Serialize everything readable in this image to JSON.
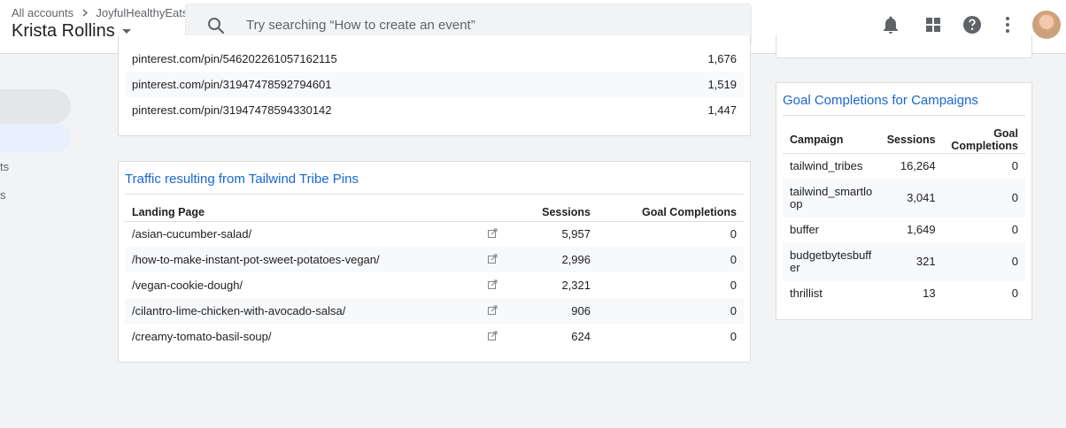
{
  "header": {
    "breadcrumb_root": "All accounts",
    "breadcrumb_sep": ">",
    "breadcrumb_property": "JoyfulHealthyEats",
    "account_name": "Krista Rollins",
    "search_placeholder": "Try searching “How to create an event”"
  },
  "sidebar": {
    "item_text_1": "ts",
    "item_text_2": "s"
  },
  "top_table": {
    "rows": [
      {
        "page": "pinterest.com/pin/546202261057162115",
        "sessions": "1,676"
      },
      {
        "page": "pinterest.com/pin/31947478592794601",
        "sessions": "1,519"
      },
      {
        "page": "pinterest.com/pin/31947478594330142",
        "sessions": "1,447"
      }
    ]
  },
  "tribe_card": {
    "title": "Traffic resulting from Tailwind Tribe Pins",
    "col_landing": "Landing Page",
    "col_sessions": "Sessions",
    "col_goals": "Goal Completions",
    "rows": [
      {
        "page": "/asian-cucumber-salad/",
        "sessions": "5,957",
        "goals": "0"
      },
      {
        "page": "/how-to-make-instant-pot-sweet-potatoes-vegan/",
        "sessions": "2,996",
        "goals": "0"
      },
      {
        "page": "/vegan-cookie-dough/",
        "sessions": "2,321",
        "goals": "0"
      },
      {
        "page": "/cilantro-lime-chicken-with-avocado-salsa/",
        "sessions": "906",
        "goals": "0"
      },
      {
        "page": "/creamy-tomato-basil-soup/",
        "sessions": "624",
        "goals": "0"
      }
    ]
  },
  "campaign_card": {
    "title": "Goal Completions for Campaigns",
    "col_campaign": "Campaign",
    "col_sessions": "Sessions",
    "col_goals_1": "Goal",
    "col_goals_2": "Completions",
    "rows": [
      {
        "campaign_1": "tailwind_tribes",
        "campaign_2": "",
        "sessions": "16,264",
        "goals": "0"
      },
      {
        "campaign_1": "tailwind_smartlo",
        "campaign_2": "op",
        "sessions": "3,041",
        "goals": "0"
      },
      {
        "campaign_1": "buffer",
        "campaign_2": "",
        "sessions": "1,649",
        "goals": "0"
      },
      {
        "campaign_1": "budgetbytesbuff",
        "campaign_2": "er",
        "sessions": "321",
        "goals": "0"
      },
      {
        "campaign_1": "thrillist",
        "campaign_2": "",
        "sessions": "13",
        "goals": "0"
      }
    ]
  },
  "colors": {
    "card_title": "#1967d2",
    "row_alt": "#f8f9fa",
    "background": "#f1f3f4"
  },
  "icons": [
    "search-icon",
    "notifications-icon",
    "apps-icon",
    "help-icon",
    "more-vert-icon",
    "open-in-new-icon",
    "chevron-right-icon",
    "dropdown-caret-icon"
  ]
}
